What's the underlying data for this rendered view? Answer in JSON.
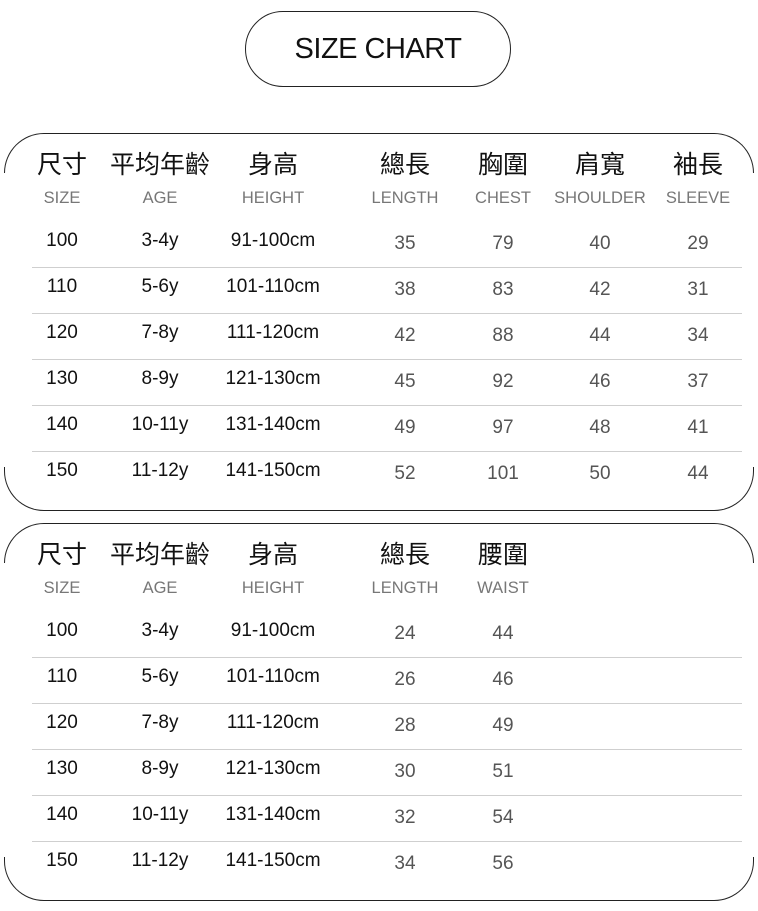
{
  "title": "SIZE CHART",
  "tables": [
    {
      "headers_zh": [
        "尺寸",
        "平均年齡",
        "身高",
        "總長",
        "胸圍",
        "肩寬",
        "袖長"
      ],
      "headers_en": [
        "SIZE",
        "AGE",
        "HEIGHT",
        "LENGTH",
        "CHEST",
        "SHOULDER",
        "SLEEVE"
      ],
      "rows": [
        [
          "100",
          "3-4y",
          "91-100cm",
          "35",
          "79",
          "40",
          "29"
        ],
        [
          "110",
          "5-6y",
          "101-110cm",
          "38",
          "83",
          "42",
          "31"
        ],
        [
          "120",
          "7-8y",
          "111-120cm",
          "42",
          "88",
          "44",
          "34"
        ],
        [
          "130",
          "8-9y",
          "121-130cm",
          "45",
          "92",
          "46",
          "37"
        ],
        [
          "140",
          "10-11y",
          "131-140cm",
          "49",
          "97",
          "48",
          "41"
        ],
        [
          "150",
          "11-12y",
          "141-150cm",
          "52",
          "101",
          "50",
          "44"
        ]
      ]
    },
    {
      "headers_zh": [
        "尺寸",
        "平均年齡",
        "身高",
        "總長",
        "腰圍"
      ],
      "headers_en": [
        "SIZE",
        "AGE",
        "HEIGHT",
        "LENGTH",
        "WAIST"
      ],
      "rows": [
        [
          "100",
          "3-4y",
          "91-100cm",
          "24",
          "44"
        ],
        [
          "110",
          "5-6y",
          "101-110cm",
          "26",
          "46"
        ],
        [
          "120",
          "7-8y",
          "111-120cm",
          "28",
          "49"
        ],
        [
          "130",
          "8-9y",
          "121-130cm",
          "30",
          "51"
        ],
        [
          "140",
          "10-11y",
          "131-140cm",
          "32",
          "54"
        ],
        [
          "150",
          "11-12y",
          "141-150cm",
          "34",
          "56"
        ]
      ]
    }
  ]
}
